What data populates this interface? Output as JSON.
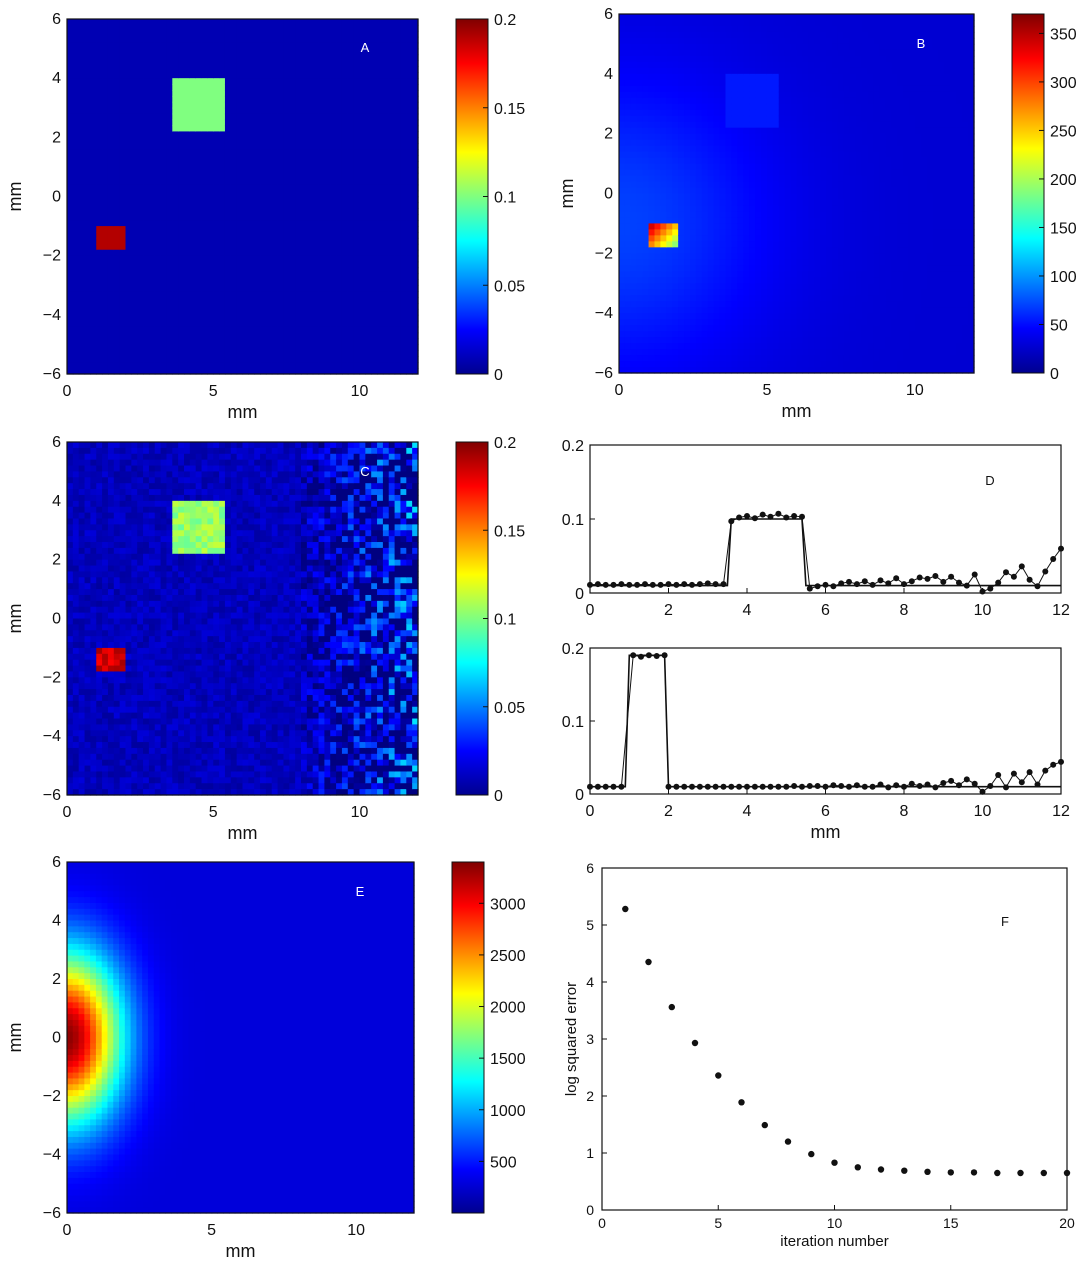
{
  "chart_data": [
    {
      "type": "heatmap",
      "label": "A",
      "label_color": "#ffffff",
      "xlabel": "mm",
      "ylabel": "mm",
      "xlim": [
        0,
        12
      ],
      "ylim": [
        -6,
        6
      ],
      "xticks": [
        0,
        5,
        10
      ],
      "yticks": [
        -6,
        -4,
        -2,
        0,
        2,
        4,
        6
      ],
      "colormap": "jet",
      "colorbar": {
        "min": 0,
        "max": 0.2,
        "ticks": [
          "0",
          "0.05",
          "0.1",
          "0.15",
          "0.2"
        ],
        "tick_values": [
          0,
          0.05,
          0.1,
          0.15,
          0.2
        ]
      },
      "background_value": 0.01,
      "inclusions": [
        {
          "x": [
            3.6,
            5.4
          ],
          "y": [
            2.2,
            4.0
          ],
          "value": 0.1
        },
        {
          "x": [
            1.0,
            1.9
          ],
          "y": [
            -1.8,
            -0.9
          ],
          "value": 0.19
        }
      ]
    },
    {
      "type": "heatmap",
      "label": "B",
      "label_color": "#ffffff",
      "xlabel": "mm",
      "ylabel": "mm",
      "xlim": [
        0,
        12
      ],
      "ylim": [
        -6,
        6
      ],
      "xticks": [
        0,
        5,
        10
      ],
      "yticks": [
        -6,
        -4,
        -2,
        0,
        2,
        4,
        6
      ],
      "colormap": "jet",
      "colorbar": {
        "min": 0,
        "max": 370,
        "ticks": [
          "0",
          "50",
          "100",
          "150",
          "200",
          "250",
          "300",
          "350"
        ],
        "tick_values": [
          0,
          50,
          100,
          150,
          200,
          250,
          300,
          350
        ]
      },
      "background_value": 30,
      "glow": {
        "x": 0,
        "y": -1,
        "peak_value": 70,
        "radius_mm": 5
      },
      "inclusions": [
        {
          "x": [
            3.6,
            5.4
          ],
          "y": [
            2.2,
            4.0
          ],
          "value": 55
        },
        {
          "x": [
            1.0,
            1.9
          ],
          "y": [
            -1.8,
            -0.9
          ],
          "value_range": [
            180,
            370
          ]
        }
      ]
    },
    {
      "type": "heatmap",
      "label": "C",
      "label_color": "#ffffff",
      "xlabel": "mm",
      "ylabel": "mm",
      "xlim": [
        0,
        12
      ],
      "ylim": [
        -6,
        6
      ],
      "xticks": [
        0,
        5,
        10
      ],
      "yticks": [
        -6,
        -4,
        -2,
        0,
        2,
        4,
        6
      ],
      "colormap": "jet",
      "colorbar": {
        "min": 0,
        "max": 0.2,
        "ticks": [
          "0",
          "0.05",
          "0.1",
          "0.15",
          "0.2"
        ],
        "tick_values": [
          0,
          0.05,
          0.1,
          0.15,
          0.2
        ]
      },
      "background_value": 0.012,
      "noise": "increasing toward x = 12",
      "inclusions": [
        {
          "x": [
            3.6,
            5.4
          ],
          "y": [
            2.2,
            4.0
          ],
          "value": 0.105
        },
        {
          "x": [
            1.0,
            1.9
          ],
          "y": [
            -1.8,
            -0.9
          ],
          "value": 0.185
        }
      ]
    },
    {
      "type": "line",
      "label": "D",
      "xlabel": "",
      "ylabel": "",
      "xlim": [
        0,
        12
      ],
      "ylim": [
        0,
        0.2
      ],
      "xticks": [
        0,
        2,
        4,
        6,
        8,
        10,
        12
      ],
      "yticks": [
        "0",
        "0.1",
        "0.2"
      ],
      "true_profile": [
        [
          0,
          0.01
        ],
        [
          3.5,
          0.01
        ],
        [
          3.6,
          0.1
        ],
        [
          5.4,
          0.1
        ],
        [
          5.5,
          0.01
        ],
        [
          12,
          0.01
        ]
      ],
      "reconstructed": [
        [
          0,
          0.011
        ],
        [
          0.2,
          0.012
        ],
        [
          0.4,
          0.011
        ],
        [
          0.6,
          0.011
        ],
        [
          0.8,
          0.012
        ],
        [
          1.0,
          0.011
        ],
        [
          1.2,
          0.011
        ],
        [
          1.4,
          0.012
        ],
        [
          1.6,
          0.011
        ],
        [
          1.8,
          0.011
        ],
        [
          2.0,
          0.012
        ],
        [
          2.2,
          0.011
        ],
        [
          2.4,
          0.012
        ],
        [
          2.6,
          0.011
        ],
        [
          2.8,
          0.012
        ],
        [
          3.0,
          0.013
        ],
        [
          3.2,
          0.012
        ],
        [
          3.4,
          0.012
        ],
        [
          3.6,
          0.097
        ],
        [
          3.8,
          0.102
        ],
        [
          4.0,
          0.104
        ],
        [
          4.2,
          0.101
        ],
        [
          4.4,
          0.106
        ],
        [
          4.6,
          0.103
        ],
        [
          4.8,
          0.107
        ],
        [
          5.0,
          0.102
        ],
        [
          5.2,
          0.104
        ],
        [
          5.4,
          0.103
        ],
        [
          5.6,
          0.006
        ],
        [
          5.8,
          0.009
        ],
        [
          6.0,
          0.011
        ],
        [
          6.2,
          0.009
        ],
        [
          6.4,
          0.013
        ],
        [
          6.6,
          0.015
        ],
        [
          6.8,
          0.012
        ],
        [
          7.0,
          0.016
        ],
        [
          7.2,
          0.011
        ],
        [
          7.4,
          0.017
        ],
        [
          7.6,
          0.013
        ],
        [
          7.8,
          0.02
        ],
        [
          8.0,
          0.012
        ],
        [
          8.2,
          0.016
        ],
        [
          8.4,
          0.021
        ],
        [
          8.6,
          0.019
        ],
        [
          8.8,
          0.023
        ],
        [
          9.0,
          0.015
        ],
        [
          9.2,
          0.022
        ],
        [
          9.4,
          0.014
        ],
        [
          9.6,
          0.01
        ],
        [
          9.8,
          0.025
        ],
        [
          10.0,
          0.002
        ],
        [
          10.2,
          0.006
        ],
        [
          10.4,
          0.014
        ],
        [
          10.6,
          0.028
        ],
        [
          10.8,
          0.022
        ],
        [
          11.0,
          0.036
        ],
        [
          11.2,
          0.018
        ],
        [
          11.4,
          0.009
        ],
        [
          11.6,
          0.029
        ],
        [
          11.8,
          0.046
        ],
        [
          12.0,
          0.06
        ]
      ]
    },
    {
      "type": "line",
      "label": "",
      "xlabel": "mm",
      "ylabel": "",
      "xlim": [
        0,
        12
      ],
      "ylim": [
        0,
        0.2
      ],
      "xticks": [
        0,
        2,
        4,
        6,
        8,
        10,
        12
      ],
      "yticks": [
        "0",
        "0.1",
        "0.2"
      ],
      "true_profile": [
        [
          0,
          0.01
        ],
        [
          0.9,
          0.01
        ],
        [
          1.0,
          0.19
        ],
        [
          1.9,
          0.19
        ],
        [
          2.0,
          0.01
        ],
        [
          12,
          0.01
        ]
      ],
      "reconstructed": [
        [
          0,
          0.01
        ],
        [
          0.2,
          0.01
        ],
        [
          0.4,
          0.01
        ],
        [
          0.6,
          0.01
        ],
        [
          0.8,
          0.01
        ],
        [
          1.1,
          0.19
        ],
        [
          1.3,
          0.188
        ],
        [
          1.5,
          0.19
        ],
        [
          1.7,
          0.189
        ],
        [
          1.9,
          0.19
        ],
        [
          2.0,
          0.01
        ],
        [
          2.2,
          0.01
        ],
        [
          2.4,
          0.01
        ],
        [
          2.6,
          0.01
        ],
        [
          2.8,
          0.01
        ],
        [
          3.0,
          0.01
        ],
        [
          3.2,
          0.01
        ],
        [
          3.4,
          0.01
        ],
        [
          3.6,
          0.01
        ],
        [
          3.8,
          0.01
        ],
        [
          4.0,
          0.01
        ],
        [
          4.2,
          0.01
        ],
        [
          4.4,
          0.01
        ],
        [
          4.6,
          0.01
        ],
        [
          4.8,
          0.01
        ],
        [
          5.0,
          0.01
        ],
        [
          5.2,
          0.011
        ],
        [
          5.4,
          0.01
        ],
        [
          5.6,
          0.011
        ],
        [
          5.8,
          0.011
        ],
        [
          6.0,
          0.01
        ],
        [
          6.2,
          0.012
        ],
        [
          6.4,
          0.011
        ],
        [
          6.6,
          0.01
        ],
        [
          6.8,
          0.012
        ],
        [
          7.0,
          0.01
        ],
        [
          7.2,
          0.01
        ],
        [
          7.4,
          0.013
        ],
        [
          7.6,
          0.009
        ],
        [
          7.8,
          0.012
        ],
        [
          8.0,
          0.01
        ],
        [
          8.2,
          0.014
        ],
        [
          8.4,
          0.011
        ],
        [
          8.6,
          0.013
        ],
        [
          8.8,
          0.009
        ],
        [
          9.0,
          0.015
        ],
        [
          9.2,
          0.018
        ],
        [
          9.4,
          0.012
        ],
        [
          9.6,
          0.02
        ],
        [
          9.8,
          0.014
        ],
        [
          10.0,
          0.003
        ],
        [
          10.2,
          0.011
        ],
        [
          10.4,
          0.026
        ],
        [
          10.6,
          0.009
        ],
        [
          10.8,
          0.028
        ],
        [
          11.0,
          0.016
        ],
        [
          11.2,
          0.03
        ],
        [
          11.4,
          0.013
        ],
        [
          11.6,
          0.032
        ],
        [
          11.8,
          0.04
        ],
        [
          12.0,
          0.044
        ]
      ]
    },
    {
      "type": "heatmap",
      "label": "E",
      "label_color": "#ffffff",
      "xlabel": "mm",
      "ylabel": "mm",
      "xlim": [
        0,
        12
      ],
      "ylim": [
        -6,
        6
      ],
      "xticks": [
        0,
        5,
        10
      ],
      "yticks": [
        -6,
        -4,
        -2,
        0,
        2,
        4,
        6
      ],
      "colormap": "jet",
      "colorbar": {
        "min": 0,
        "max": 3400,
        "ticks": [
          "500",
          "1000",
          "1500",
          "2000",
          "2500",
          "3000"
        ],
        "tick_values": [
          500,
          1000,
          1500,
          2000,
          2500,
          3000
        ]
      },
      "background_value": 300,
      "source": {
        "x": 0,
        "y": 0,
        "peak_value": 3350,
        "sigma_x_mm": 1.3,
        "sigma_y_mm": 2.0
      }
    },
    {
      "type": "scatter",
      "label": "F",
      "xlabel": "iteration number",
      "ylabel": "log squared error",
      "xlim": [
        0,
        20
      ],
      "ylim": [
        0,
        6
      ],
      "xticks": [
        0,
        5,
        10,
        15,
        20
      ],
      "yticks": [
        0,
        1,
        2,
        3,
        4,
        5,
        6
      ],
      "x": [
        1,
        2,
        3,
        4,
        5,
        6,
        7,
        8,
        9,
        10,
        11,
        12,
        13,
        14,
        15,
        16,
        17,
        18,
        19,
        20
      ],
      "y": [
        5.28,
        4.35,
        3.56,
        2.93,
        2.36,
        1.89,
        1.49,
        1.2,
        0.98,
        0.83,
        0.75,
        0.71,
        0.69,
        0.67,
        0.66,
        0.66,
        0.65,
        0.65,
        0.65,
        0.65
      ]
    }
  ]
}
